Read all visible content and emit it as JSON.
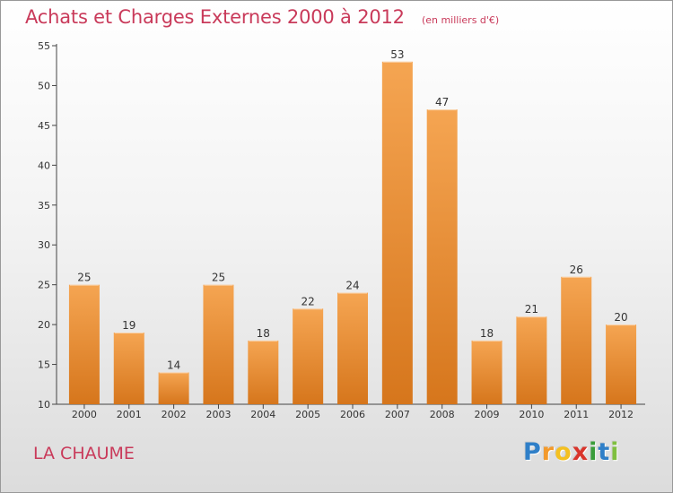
{
  "header": {
    "title": "Achats et Charges Externes 2000 à 2012",
    "subtitle": "(en milliers d'€)"
  },
  "footer": {
    "city": "LA CHAUME",
    "logo": {
      "letters": [
        "P",
        "r",
        "o",
        "x",
        "i",
        "t",
        "i"
      ],
      "colors": [
        "#2f7fc8",
        "#f39a2c",
        "#f4c020",
        "#d9352c",
        "#3a9d3a",
        "#2f7fc8",
        "#7fbf3f"
      ]
    }
  },
  "colors": {
    "bar_top": "#f5a552",
    "bar_bottom": "#d6761c",
    "title": "#c93a5a"
  },
  "chart_data": {
    "type": "bar",
    "categories": [
      "2000",
      "2001",
      "2002",
      "2003",
      "2004",
      "2005",
      "2006",
      "2007",
      "2008",
      "2009",
      "2010",
      "2011",
      "2012"
    ],
    "values": [
      25,
      19,
      14,
      25,
      18,
      22,
      24,
      53,
      47,
      18,
      21,
      26,
      20
    ],
    "ylim": [
      10,
      55
    ],
    "yticks": [
      10,
      15,
      20,
      25,
      30,
      35,
      40,
      45,
      50,
      55
    ],
    "title": "Achats et Charges Externes 2000 à 2012",
    "xlabel": "",
    "ylabel": "",
    "grid": false,
    "data_labels": true
  }
}
